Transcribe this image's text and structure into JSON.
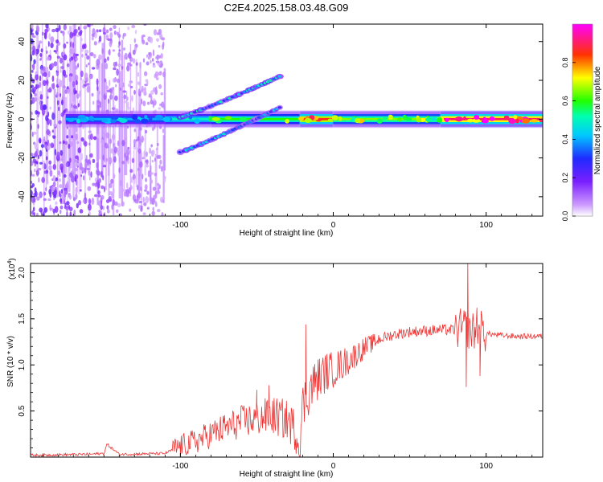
{
  "title": "C2E4.2025.158.03.48.G09",
  "chart_data": [
    {
      "type": "heatmap",
      "xlabel": "Height of straight line (km)",
      "ylabel": "Frequency (Hz)",
      "xlim": [
        -198,
        137
      ],
      "ylim": [
        -50,
        49
      ],
      "xticks": [
        -100,
        0,
        100
      ],
      "yticks": [
        -40,
        -20,
        0,
        20,
        40
      ],
      "colorbar": {
        "label": "Normalized spectral amplitude",
        "range": [
          0.0,
          1.0
        ],
        "ticks": [
          0.0,
          0.2,
          0.4,
          0.6,
          0.8
        ],
        "colors": [
          "#ffffff",
          "#9b30ff",
          "#2020ff",
          "#00ffff",
          "#00ff00",
          "#ffff00",
          "#ff0000",
          "#ff00ff"
        ]
      },
      "noise_region_x": [
        -198,
        -110
      ],
      "main_band": {
        "frequency": 0,
        "segments": [
          {
            "x": [
              -175,
              -110
            ],
            "amplitude": 0.4
          },
          {
            "x": [
              -110,
              -80
            ],
            "amplitude": 0.5
          },
          {
            "x": [
              -80,
              -22
            ],
            "amplitude": 0.6
          },
          {
            "x": [
              -22,
              0
            ],
            "amplitude": 0.85
          },
          {
            "x": [
              0,
              70
            ],
            "amplitude": 0.65
          },
          {
            "x": [
              70,
              137
            ],
            "amplitude": 0.9
          }
        ]
      },
      "chirp_upper": {
        "x": [
          -100,
          -35
        ],
        "frequency": [
          1,
          22
        ],
        "amplitude": 0.45
      },
      "chirp_lower": {
        "x": [
          -100,
          -35
        ],
        "frequency": [
          -17,
          6
        ],
        "amplitude": 0.4
      }
    },
    {
      "type": "line",
      "xlabel": "Height of straight line (km)",
      "ylabel": "SNR (10 * v/v)",
      "y_multiplier": "(x10^4)",
      "y_multiplier_base": "(x10",
      "y_multiplier_exp": "4",
      "y_multiplier_close": ")",
      "xlim": [
        -198,
        137
      ],
      "ylim": [
        0,
        2.1
      ],
      "xticks": [
        -100,
        0,
        100
      ],
      "yticks": [
        0.5,
        1.0,
        1.5,
        2.0
      ],
      "line_color": "#ee3333",
      "series": [
        {
          "x": [
            -198,
            -160,
            -150,
            -148,
            -140,
            -110,
            -100,
            -90,
            -80,
            -70,
            -60,
            -50,
            -40,
            -30,
            -25,
            -22,
            -20,
            -15,
            -10,
            -5,
            0,
            10,
            20,
            30,
            40,
            50,
            60,
            70,
            80,
            85,
            88,
            90,
            95,
            100,
            110,
            120,
            137
          ],
          "y": [
            0.02,
            0.03,
            0.04,
            0.14,
            0.03,
            0.04,
            0.12,
            0.17,
            0.25,
            0.32,
            0.38,
            0.42,
            0.45,
            0.4,
            0.3,
            0.12,
            0.55,
            0.75,
            0.85,
            0.92,
            0.95,
            1.05,
            1.18,
            1.28,
            1.33,
            1.36,
            1.37,
            1.38,
            1.38,
            1.4,
            1.4,
            1.35,
            1.4,
            1.34,
            1.32,
            1.31,
            1.31
          ],
          "spikes": [
            {
              "x": -148,
              "y": 0.14
            },
            {
              "x": -50,
              "y": 0.73
            },
            {
              "x": -42,
              "y": 0.78
            },
            {
              "x": -18,
              "y": 1.44
            },
            {
              "x": 88,
              "y": 2.13
            },
            {
              "x": 87,
              "y": 0.76
            },
            {
              "x": 94,
              "y": 1.62
            },
            {
              "x": 96,
              "y": 0.88
            }
          ]
        }
      ]
    }
  ]
}
